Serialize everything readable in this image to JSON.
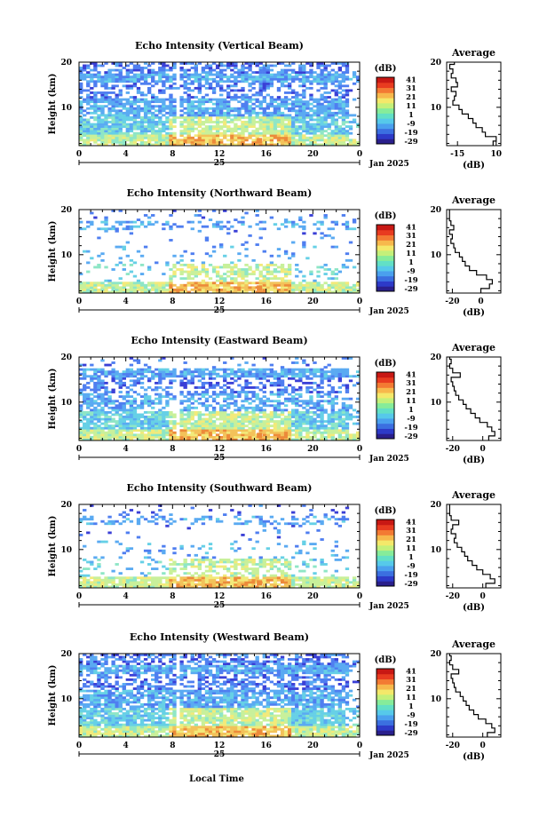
{
  "colors": {
    "colorbar": [
      "#2a1f8c",
      "#2d3ac8",
      "#3b6fe0",
      "#4aa0ee",
      "#56c9ea",
      "#62e0c6",
      "#86ec9a",
      "#c4f07a",
      "#f4e86a",
      "#f7b84c",
      "#f37a33",
      "#e83b20",
      "#c81814"
    ],
    "echo_palette": [
      "#3a3fd6",
      "#4f7ef0",
      "#5aaaf2",
      "#66d0e6",
      "#8ee6c6",
      "#c8f09a",
      "#f2ea7a",
      "#f3c25a",
      "#ec8a3a"
    ],
    "profile_line": "#000000"
  },
  "xaxis": {
    "ticks": [
      "0",
      "4",
      "8",
      "12",
      "16",
      "20",
      "0"
    ],
    "date_label": "25",
    "date_right": "Jan 2025"
  },
  "footer": {
    "xlabel": "Local Time"
  },
  "colorbar_labels": [
    "41",
    "31",
    "21",
    "11",
    "1",
    "-9",
    "-19",
    "-29"
  ],
  "chart_data": [
    {
      "type": "heatmap",
      "title": "Echo Intensity (Vertical Beam)",
      "ylabel": "Height (km)",
      "y_ticks": [
        "20",
        "10"
      ],
      "ylim": [
        1.5,
        20
      ],
      "xlim_hours": [
        0,
        24
      ],
      "colorbar_unit": "(dB)",
      "clim": [
        -29,
        41
      ],
      "profile": {
        "title": "Average",
        "xlabel": "(dB)",
        "x_ticks": [
          "-15",
          "10"
        ],
        "xlim": [
          -22,
          13
        ],
        "y_ticks": [
          "20",
          "10"
        ],
        "heights_km": [
          2,
          3,
          4,
          5,
          6,
          7,
          8,
          9,
          10,
          11,
          12,
          13,
          14,
          15,
          16,
          17,
          18,
          19,
          20
        ],
        "values_db": [
          8,
          10,
          3,
          1,
          -3,
          -5,
          -8,
          -12,
          -14,
          -18,
          -17,
          -16,
          -19,
          -15,
          -16,
          -19,
          -18,
          -20,
          -17
        ]
      }
    },
    {
      "type": "heatmap",
      "title": "Echo Intensity (Northward Beam)",
      "ylabel": "Height (km)",
      "y_ticks": [
        "20",
        "10"
      ],
      "ylim": [
        1.5,
        20
      ],
      "xlim_hours": [
        0,
        24
      ],
      "colorbar_unit": "(dB)",
      "clim": [
        -29,
        41
      ],
      "profile": {
        "title": "Average",
        "xlabel": "(dB)",
        "x_ticks": [
          "-20",
          "0"
        ],
        "xlim": [
          -24,
          14
        ],
        "y_ticks": [
          "20",
          "10"
        ],
        "heights_km": [
          2,
          3,
          4,
          5,
          6,
          7,
          8,
          9,
          10,
          11,
          12,
          13,
          14,
          15,
          16,
          17,
          18,
          19,
          20
        ],
        "values_db": [
          0,
          6,
          8,
          4,
          -3,
          -8,
          -11,
          -13,
          -15,
          -18,
          -19,
          -21,
          -20,
          -22,
          -19,
          -21,
          -22,
          -22,
          -22
        ]
      }
    },
    {
      "type": "heatmap",
      "title": "Echo Intensity (Eastward Beam)",
      "ylabel": "Height (km)",
      "y_ticks": [
        "20",
        "10"
      ],
      "ylim": [
        1.5,
        20
      ],
      "xlim_hours": [
        0,
        24
      ],
      "colorbar_unit": "(dB)",
      "clim": [
        -29,
        41
      ],
      "profile": {
        "title": "Average",
        "xlabel": "(dB)",
        "x_ticks": [
          "-20",
          "0"
        ],
        "xlim": [
          -24,
          12
        ],
        "y_ticks": [
          "20",
          "10"
        ],
        "heights_km": [
          2,
          3,
          4,
          5,
          6,
          7,
          8,
          9,
          10,
          11,
          12,
          13,
          14,
          15,
          16,
          17,
          18,
          19,
          20
        ],
        "values_db": [
          4,
          8,
          6,
          3,
          -2,
          -5,
          -8,
          -11,
          -13,
          -16,
          -18,
          -19,
          -20,
          -21,
          -15,
          -20,
          -22,
          -21,
          -22
        ]
      }
    },
    {
      "type": "heatmap",
      "title": "Echo Intensity (Southward Beam)",
      "ylabel": "Height (km)",
      "y_ticks": [
        "20",
        "10"
      ],
      "ylim": [
        1.5,
        20
      ],
      "xlim_hours": [
        0,
        24
      ],
      "colorbar_unit": "(dB)",
      "clim": [
        -29,
        41
      ],
      "profile": {
        "title": "Average",
        "xlabel": "(dB)",
        "x_ticks": [
          "-20",
          "0"
        ],
        "xlim": [
          -24,
          12
        ],
        "y_ticks": [
          "20",
          "10"
        ],
        "heights_km": [
          2,
          3,
          4,
          5,
          6,
          7,
          8,
          9,
          10,
          11,
          12,
          13,
          14,
          15,
          16,
          17,
          18,
          19,
          20
        ],
        "values_db": [
          2,
          8,
          5,
          0,
          -4,
          -7,
          -10,
          -12,
          -14,
          -17,
          -19,
          -18,
          -21,
          -20,
          -16,
          -21,
          -22,
          -22,
          -22
        ]
      }
    },
    {
      "type": "heatmap",
      "title": "Echo Intensity (Westward Beam)",
      "ylabel": "Height (km)",
      "y_ticks": [
        "20",
        "10"
      ],
      "ylim": [
        1.5,
        20
      ],
      "xlim_hours": [
        0,
        24
      ],
      "colorbar_unit": "(dB)",
      "clim": [
        -29,
        41
      ],
      "profile": {
        "title": "Average",
        "xlabel": "(dB)",
        "x_ticks": [
          "-20",
          "0"
        ],
        "xlim": [
          -24,
          12
        ],
        "y_ticks": [
          "20",
          "10"
        ],
        "heights_km": [
          2,
          3,
          4,
          5,
          6,
          7,
          8,
          9,
          10,
          11,
          12,
          13,
          14,
          15,
          16,
          17,
          18,
          19,
          20
        ],
        "values_db": [
          3,
          8,
          6,
          2,
          -3,
          -6,
          -9,
          -11,
          -13,
          -15,
          -18,
          -19,
          -20,
          -21,
          -16,
          -20,
          -22,
          -21,
          -22
        ]
      }
    }
  ]
}
